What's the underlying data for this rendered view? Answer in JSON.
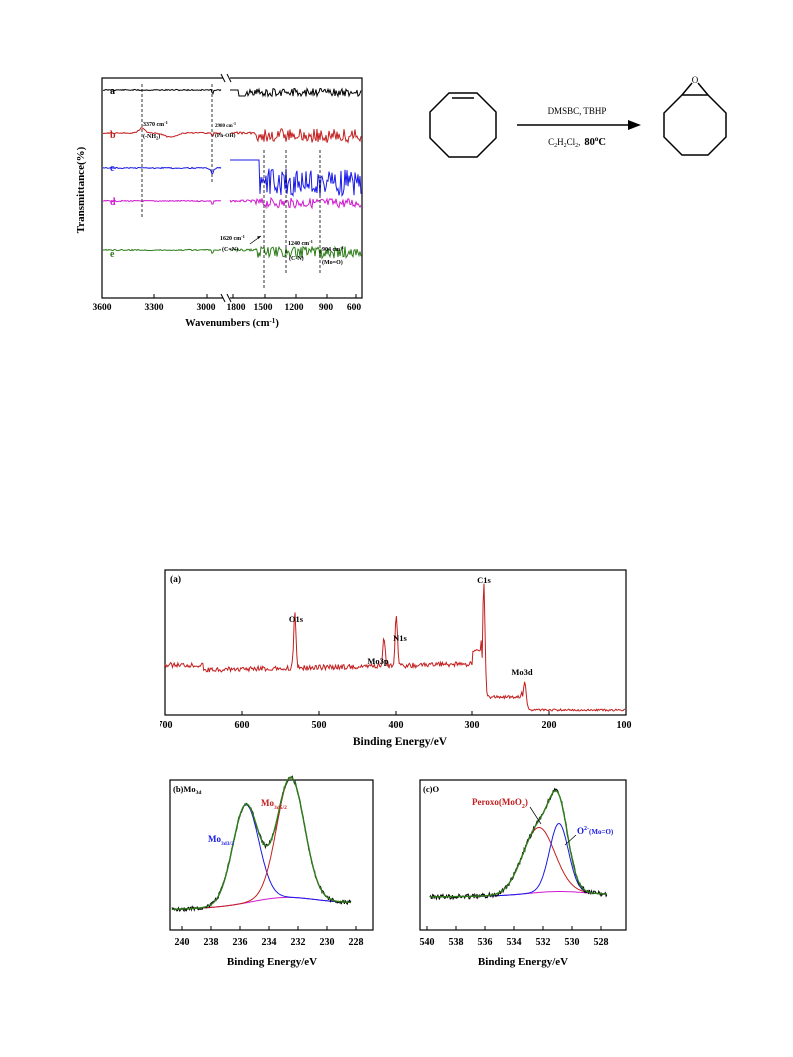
{
  "ftir": {
    "ylabel": "Transmittance(%)",
    "xlabel": "Wavenumbers (cm",
    "xlabel_sup": "-1",
    "xlabel_end": ")",
    "ticks_left": [
      "3600",
      "3300",
      "3000"
    ],
    "ticks_right": [
      "1800",
      "1500",
      "1200",
      "900",
      "600"
    ],
    "series": [
      {
        "name": "a",
        "color": "#000000"
      },
      {
        "name": "b",
        "color": "#c41e1e"
      },
      {
        "name": "c",
        "color": "#1a1ae6"
      },
      {
        "name": "d",
        "color": "#d01ad0"
      },
      {
        "name": "e",
        "color": "#2e7d1a"
      }
    ],
    "annotations": {
      "nh2_val": "3370 cm",
      "nh2_sup": "-1",
      "nh2_grp": "(-NH",
      "nh2_sub": "2",
      "nh2_end": ")",
      "phoh_val": "2980 cm",
      "phoh_sup": "-1",
      "phoh_grp": "(Ph-OH)",
      "cn_val": "1620 cm",
      "cn_sup": "-1",
      "cn_grp": "(C=N)",
      "cn2_val": "1240 cm",
      "cn2_sup": "-1",
      "cn2_grp": "(C-N)",
      "moo_val": "904 cm",
      "moo_sup": "-1",
      "moo_grp": "(Mo=O)"
    }
  },
  "reaction": {
    "reagents_top": "DMSBC, TBHP",
    "solvent_c1": "C",
    "solvent_s1": "2",
    "solvent_c2": "H",
    "solvent_s2": "2",
    "solvent_c3": "Cl",
    "solvent_s3": "2",
    "solvent_sep": ",",
    "temp": "80",
    "temp_deg": "o",
    "temp_unit": "C",
    "epoxide_o": "O"
  },
  "xps_survey": {
    "panel_label": "(a)",
    "xlabel": "Binding Energy/eV",
    "ticks": [
      "700",
      "600",
      "500",
      "400",
      "300",
      "200",
      "100"
    ],
    "color": "#c41e1e",
    "peaks": {
      "o1s": "O1s",
      "mo3p": "Mo3p",
      "n1s": "N1s",
      "c1s": "C1s",
      "mo3d": "Mo3d"
    }
  },
  "xps_mo": {
    "panel_label": "(b)",
    "title_main": "Mo",
    "title_sub": "3d",
    "label_blue": "Mo",
    "label_blue_sub": "3d3/2",
    "label_red": "Mo",
    "label_red_sub": "3d5/2",
    "xlabel": "Binding Energy/eV",
    "ticks": [
      "240",
      "238",
      "236",
      "234",
      "232",
      "230",
      "228"
    ]
  },
  "xps_o": {
    "panel_label": "(c)",
    "title_main": "O",
    "label_red_main": "Peroxo(MoO",
    "label_red_sub": "2",
    "label_red_end": ")",
    "label_blue_main": "O",
    "label_blue_sup": "2-",
    "label_blue_end": "(Mo=O)",
    "xlabel": "Binding Energy/eV",
    "ticks": [
      "540",
      "538",
      "536",
      "534",
      "532",
      "530",
      "528"
    ]
  }
}
